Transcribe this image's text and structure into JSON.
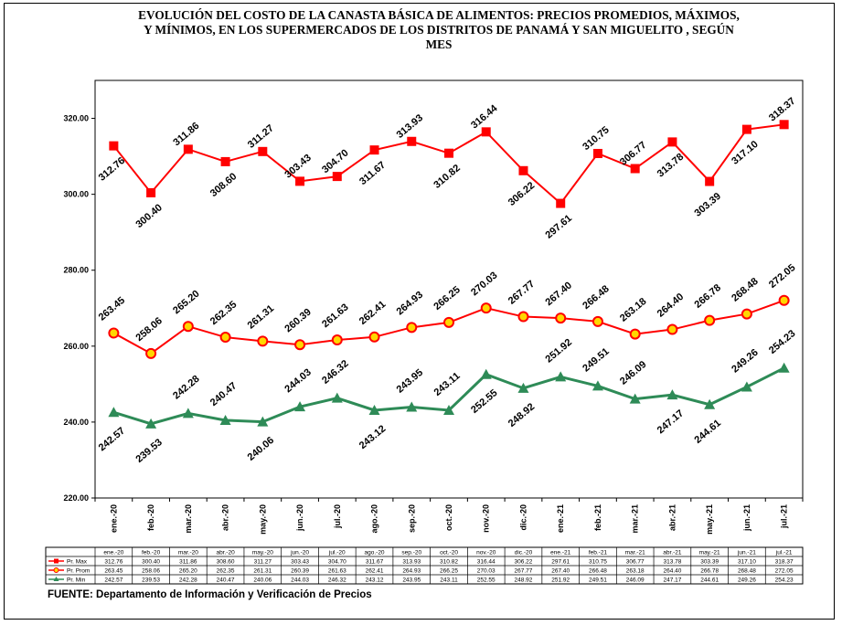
{
  "title": "EVOLUCIÓN DEL COSTO DE LA CANASTA BÁSICA DE ALIMENTOS: PRECIOS PROMEDIOS, MÁXIMOS,  Y MÍNIMOS, EN LOS SUPERMERCADOS DE LOS DISTRITOS DE PANAMÁ Y SAN MIGUELITO ,  SEGÚN MES",
  "source": "FUENTE:  Departamento de Información y Verificación de Precios",
  "chart_data": {
    "type": "line",
    "categories": [
      "ene.-20",
      "feb.-20",
      "mar.-20",
      "abr.-20",
      "may.-20",
      "jun.-20",
      "jul.-20",
      "ago.-20",
      "sep.-20",
      "oct.-20",
      "nov.-20",
      "dic.-20",
      "ene.-21",
      "feb.-21",
      "mar.-21",
      "abr.-21",
      "may.-21",
      "jun.-21",
      "jul.-21"
    ],
    "ylim": [
      220,
      330
    ],
    "yticks": [
      "220.00",
      "240.00",
      "260.00",
      "280.00",
      "300.00",
      "320.00"
    ],
    "ytick_values": [
      220,
      240,
      260,
      280,
      300,
      320
    ],
    "grid": false,
    "legend": "data table below chart",
    "series": [
      {
        "name": "Pr. Max",
        "color": "#ff0000",
        "marker": "square",
        "values": [
          312.76,
          300.4,
          311.86,
          308.6,
          311.27,
          303.43,
          304.7,
          311.67,
          313.93,
          310.82,
          316.44,
          306.22,
          297.61,
          310.75,
          306.77,
          313.78,
          303.39,
          317.1,
          318.37
        ],
        "labels": [
          "312.76",
          "300.40",
          "311.86",
          "308.60",
          "311.27",
          "303.43",
          "304.70",
          "311.67",
          "313.93",
          "310.82",
          "316.44",
          "306.22",
          "297.61",
          "310.75",
          "306.77",
          "313.78",
          "303.39",
          "317.10",
          "318.37"
        ]
      },
      {
        "name": "Pr. Prom",
        "color": "#ff0000",
        "marker": "circle",
        "marker_fill": "#ffd700",
        "values": [
          263.45,
          258.06,
          265.2,
          262.35,
          261.31,
          260.39,
          261.63,
          262.41,
          264.93,
          266.25,
          270.03,
          267.77,
          267.4,
          266.48,
          263.18,
          264.4,
          266.78,
          268.48,
          272.05
        ],
        "labels": [
          "263.45",
          "258.06",
          "265.20",
          "262.35",
          "261.31",
          "260.39",
          "261.63",
          "262.41",
          "264.93",
          "266.25",
          "270.03",
          "267.77",
          "267.40",
          "266.48",
          "263.18",
          "264.40",
          "266.78",
          "268.48",
          "272.05"
        ]
      },
      {
        "name": "Pr. Min",
        "color": "#2e8b57",
        "marker": "triangle",
        "values": [
          242.57,
          239.53,
          242.28,
          240.47,
          240.06,
          244.03,
          246.32,
          243.12,
          243.95,
          243.11,
          252.55,
          248.92,
          251.92,
          249.51,
          246.09,
          247.17,
          244.61,
          249.26,
          254.23
        ],
        "labels": [
          "242.57",
          "239.53",
          "242.28",
          "240.47",
          "240.06",
          "244.03",
          "246.32",
          "243.12",
          "243.95",
          "243.11",
          "252.55",
          "248.92",
          "251.92",
          "249.51",
          "246.09",
          "247.17",
          "244.61",
          "249.26",
          "254.23"
        ]
      }
    ]
  }
}
